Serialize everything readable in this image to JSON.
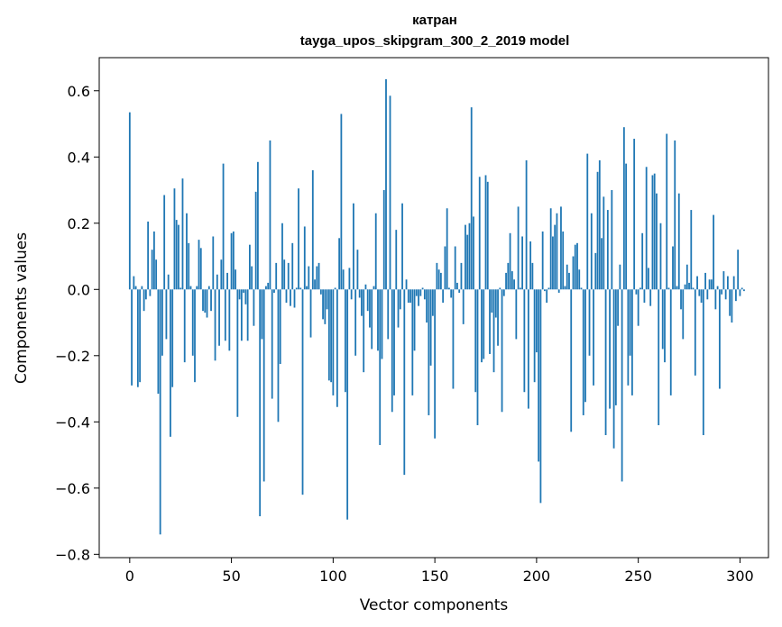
{
  "chart_data": {
    "type": "bar",
    "title": "катран",
    "subtitle": "tayga_upos_skipgram_300_2_2019 model",
    "xlabel": "Vector components",
    "ylabel": "Components values",
    "xlim": [
      -15,
      314
    ],
    "ylim": [
      -0.81,
      0.7
    ],
    "xticks": [
      0,
      50,
      100,
      150,
      200,
      250,
      300
    ],
    "yticks": [
      -0.8,
      -0.6,
      -0.4,
      -0.2,
      0.0,
      0.2,
      0.4,
      0.6
    ],
    "ytick_labels": [
      "−0.8",
      "−0.6",
      "−0.4",
      "−0.2",
      "0.0",
      "0.2",
      "0.4",
      "0.6"
    ],
    "xtick_labels": [
      "0",
      "50",
      "100",
      "150",
      "200",
      "250",
      "300"
    ],
    "color": "#1f77b4",
    "values": [
      0.535,
      -0.29,
      0.04,
      0.01,
      -0.295,
      -0.28,
      0.01,
      -0.065,
      -0.03,
      0.205,
      -0.02,
      0.12,
      0.175,
      0.09,
      -0.315,
      -0.74,
      -0.2,
      0.285,
      -0.15,
      0.045,
      -0.445,
      -0.295,
      0.305,
      0.21,
      0.195,
      0.005,
      0.335,
      -0.22,
      0.23,
      0.14,
      0.01,
      -0.2,
      -0.28,
      0.01,
      0.15,
      0.125,
      -0.065,
      -0.07,
      -0.085,
      0.01,
      -0.065,
      0.16,
      -0.215,
      0.045,
      -0.17,
      0.09,
      0.38,
      -0.155,
      0.05,
      -0.185,
      0.17,
      0.175,
      0.06,
      -0.385,
      -0.03,
      -0.155,
      -0.01,
      -0.045,
      -0.155,
      0.135,
      0.07,
      -0.11,
      0.295,
      0.385,
      -0.685,
      -0.15,
      -0.58,
      0.01,
      0.02,
      0.45,
      -0.33,
      -0.01,
      0.08,
      -0.4,
      -0.225,
      0.2,
      0.09,
      -0.04,
      0.08,
      -0.05,
      0.14,
      -0.055,
      0.005,
      0.305,
      0.005,
      -0.62,
      0.19,
      0.01,
      0.07,
      -0.145,
      0.36,
      0.03,
      0.07,
      0.08,
      -0.015,
      -0.09,
      -0.105,
      -0.06,
      -0.275,
      -0.28,
      -0.32,
      0.005,
      -0.355,
      0.155,
      0.53,
      0.06,
      -0.31,
      -0.695,
      0.065,
      -0.03,
      0.26,
      -0.2,
      0.12,
      -0.025,
      -0.08,
      -0.25,
      0.015,
      -0.065,
      -0.115,
      -0.18,
      0.01,
      0.23,
      -0.185,
      -0.47,
      -0.21,
      0.3,
      0.635,
      -0.15,
      0.585,
      -0.37,
      -0.32,
      0.18,
      -0.115,
      -0.06,
      0.26,
      -0.56,
      0.03,
      -0.04,
      -0.04,
      -0.32,
      -0.185,
      -0.02,
      -0.05,
      -0.02,
      0.005,
      -0.03,
      -0.1,
      -0.38,
      -0.23,
      -0.08,
      -0.45,
      0.08,
      0.06,
      0.05,
      -0.04,
      0.13,
      0.245,
      0.005,
      -0.025,
      -0.3,
      0.13,
      0.02,
      -0.01,
      0.08,
      -0.105,
      0.195,
      0.165,
      0.2,
      0.55,
      0.22,
      -0.31,
      -0.41,
      0.34,
      -0.22,
      -0.21,
      0.345,
      0.325,
      -0.195,
      -0.07,
      -0.25,
      -0.085,
      -0.17,
      0.005,
      -0.37,
      -0.02,
      0.05,
      0.08,
      0.17,
      0.055,
      0.03,
      -0.15,
      0.25,
      0.005,
      0.16,
      -0.31,
      0.39,
      -0.36,
      0.145,
      0.08,
      -0.28,
      -0.19,
      -0.52,
      -0.645,
      0.175,
      -0.005,
      -0.04,
      0.005,
      0.245,
      0.16,
      0.195,
      0.23,
      -0.01,
      0.25,
      0.175,
      0.01,
      0.075,
      0.05,
      -0.43,
      0.1,
      0.135,
      0.14,
      0.06,
      0.005,
      -0.38,
      -0.34,
      0.41,
      -0.2,
      0.23,
      -0.29,
      0.11,
      0.355,
      0.39,
      0.155,
      0.28,
      -0.44,
      0.24,
      -0.36,
      0.3,
      -0.48,
      -0.35,
      -0.11,
      0.075,
      -0.58,
      0.49,
      0.38,
      -0.29,
      -0.2,
      -0.32,
      0.455,
      -0.015,
      -0.11,
      0.005,
      0.17,
      -0.04,
      0.37,
      0.065,
      -0.05,
      0.345,
      0.35,
      0.29,
      -0.41,
      0.2,
      -0.18,
      -0.22,
      0.47,
      0.005,
      -0.32,
      0.13,
      0.45,
      0.01,
      0.29,
      -0.06,
      -0.15,
      0.015,
      0.075,
      0.02,
      0.24,
      0.005,
      -0.26,
      0.04,
      -0.02,
      -0.04,
      -0.44,
      0.05,
      -0.03,
      0.03,
      0.03,
      0.225,
      -0.06,
      0.01,
      -0.3,
      -0.015,
      0.055,
      -0.03,
      0.04,
      -0.08,
      -0.1,
      0.04,
      -0.035,
      0.12,
      -0.02,
      0.005,
      -0.005
    ]
  }
}
